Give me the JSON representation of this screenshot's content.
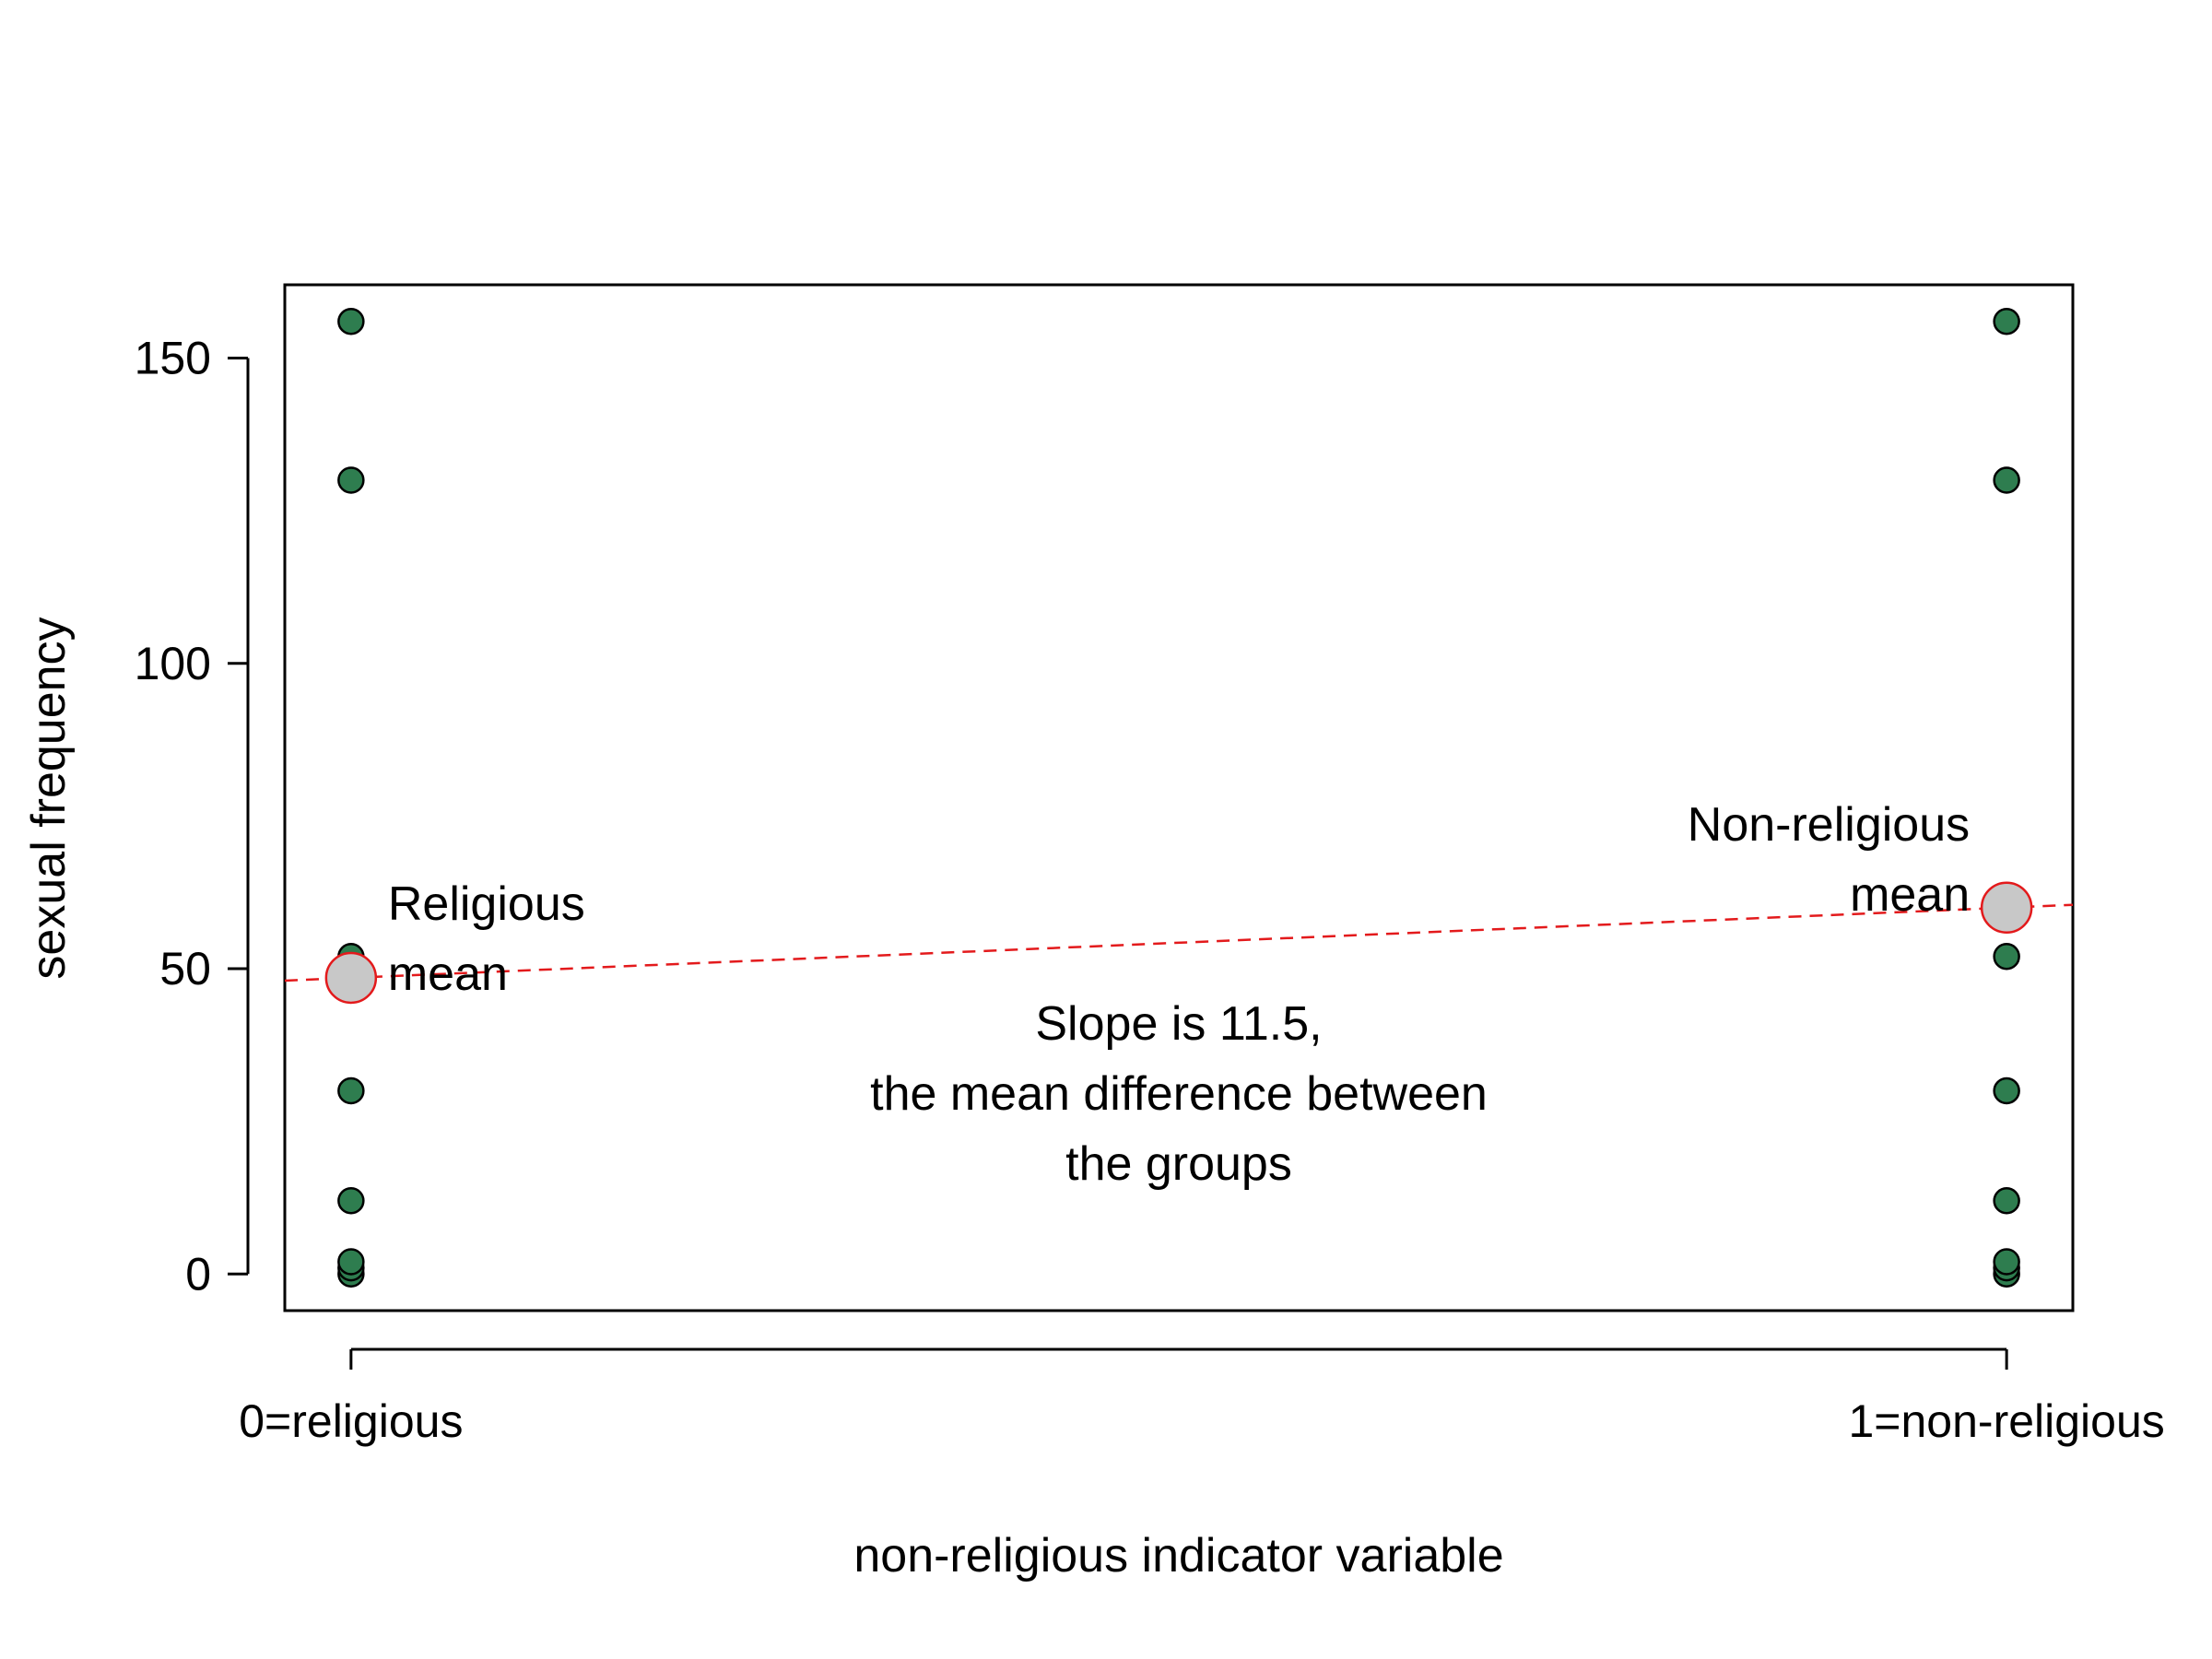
{
  "chart_data": {
    "type": "scatter",
    "title": "",
    "xlabel": "non-religious indicator variable",
    "ylabel": "sexual frequency",
    "xlim": [
      -0.04,
      1.04
    ],
    "ylim": [
      -6,
      162
    ],
    "x_ticks": [
      {
        "value": 0,
        "label": "0=religious"
      },
      {
        "value": 1,
        "label": "1=non-religious"
      }
    ],
    "y_ticks": [
      0,
      50,
      100,
      150
    ],
    "grid": false,
    "points": [
      {
        "x": 0,
        "y": 0
      },
      {
        "x": 0,
        "y": 1
      },
      {
        "x": 0,
        "y": 2
      },
      {
        "x": 0,
        "y": 12
      },
      {
        "x": 0,
        "y": 30
      },
      {
        "x": 0,
        "y": 52
      },
      {
        "x": 0,
        "y": 130
      },
      {
        "x": 0,
        "y": 156
      },
      {
        "x": 1,
        "y": 0
      },
      {
        "x": 1,
        "y": 1
      },
      {
        "x": 1,
        "y": 2
      },
      {
        "x": 1,
        "y": 12
      },
      {
        "x": 1,
        "y": 30
      },
      {
        "x": 1,
        "y": 52
      },
      {
        "x": 1,
        "y": 130
      },
      {
        "x": 1,
        "y": 156
      }
    ],
    "group_means": [
      {
        "x": 0,
        "y": 48.5,
        "label_lines": [
          "Religious",
          "mean"
        ]
      },
      {
        "x": 1,
        "y": 60,
        "label_lines": [
          "Non-religious",
          "mean"
        ]
      }
    ],
    "regression_line": {
      "intercept": 48.5,
      "slope": 11.5
    },
    "annotation_lines": [
      "Slope is 11.5,",
      "the mean difference between",
      "the groups"
    ],
    "colors": {
      "point_fill": "#2e7d4f",
      "point_stroke": "#000000",
      "mean_fill": "#c8c8c8",
      "mean_stroke": "#e31a1c",
      "line": "#e31a1c"
    }
  }
}
